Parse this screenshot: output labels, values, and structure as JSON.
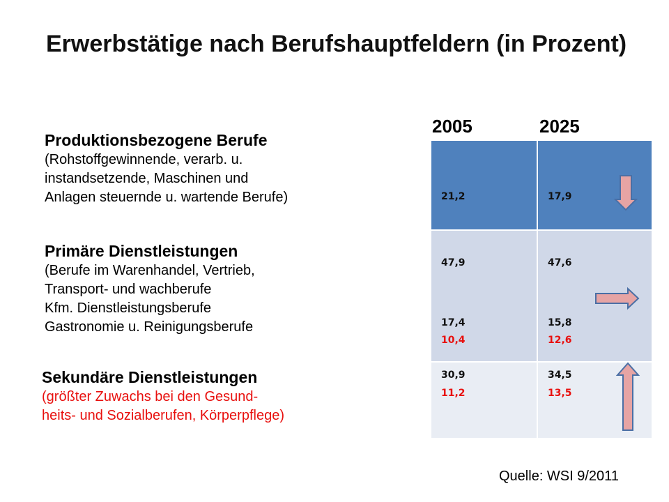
{
  "title": "Erwerbstätige nach Berufshauptfeldern (in Prozent)",
  "years": [
    "2005",
    "2025"
  ],
  "sections": {
    "produktion": {
      "heading": "Produktionsbezogene Berufe",
      "lines": [
        "(Rohstoffgewinnende, verarb. u.",
        "instandsetzende, Maschinen und",
        "Anlagen steuernde u. wartende Berufe)"
      ]
    },
    "primaer": {
      "heading": "Primäre Dienstleistungen",
      "lines": [
        "(Berufe im Warenhandel, Vertrieb,",
        "Transport- und wachberufe",
        "Kfm. Dienstleistungsberufe",
        "Gastronomie u. Reinigungsberufe"
      ]
    },
    "sekundaer": {
      "heading": "Sekundäre Dienstleistungen",
      "lines": [
        "(größter Zuwachs bei den Gesund-",
        "heits- und Sozialberufen, Körperpflege)"
      ]
    }
  },
  "table": {
    "produktion": {
      "y2005": "21,2",
      "y2025": "17,9",
      "trend": "down-arrow-icon"
    },
    "primaer": {
      "y2005_total": "47,9",
      "y2025_total": "47,6",
      "y2005_kfm": "17,4",
      "y2025_kfm": "15,8",
      "y2005_gastro": "10,4",
      "y2025_gastro": "12,6",
      "trend": "right-arrow-icon"
    },
    "sekundaer": {
      "y2005_total": "30,9",
      "y2025_total": "34,5",
      "y2005_gesund": "11,2",
      "y2025_gesund": "13,5",
      "trend": "up-arrow-icon"
    }
  },
  "source": "Quelle: WSI 9/2011",
  "colors": {
    "header_row": "#4f81bd",
    "row_primaer": "#d0d8e8",
    "row_sekundaer": "#e9edf4",
    "accent_red": "#e8100e",
    "arrow_fill": "#e6a4a4",
    "arrow_stroke": "#4a6fa5"
  }
}
